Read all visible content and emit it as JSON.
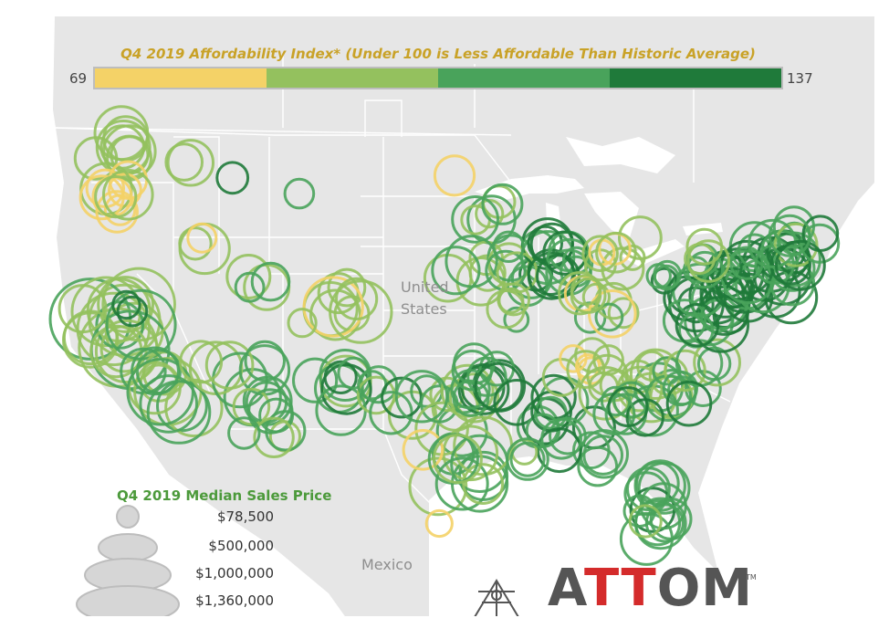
{
  "legend": {
    "title": "Q4 2019 Affordability Index* (Under 100 is Less Affordable Than Historic Average)",
    "min_label": "69",
    "max_label": "137",
    "colors": [
      "#f4d267",
      "#94c15e",
      "#49a35b",
      "#1f7a3a"
    ]
  },
  "size_legend": {
    "title": "Q4 2019 Median Sales Price",
    "items": [
      "$78,500",
      "$500,000",
      "$1,000,000",
      "$1,360,000"
    ]
  },
  "map_labels": {
    "country_usa_line1": "United",
    "country_usa_line2": "States",
    "country_mexico": "Mexico"
  },
  "brand": {
    "logo_text": "ATTOM",
    "trademark": "TM"
  },
  "colors": {
    "land": "#e3e3e3",
    "water": "#ffffff",
    "border": "#ffffff",
    "title": "#c9a227",
    "size_title": "#4c9a3b"
  }
}
